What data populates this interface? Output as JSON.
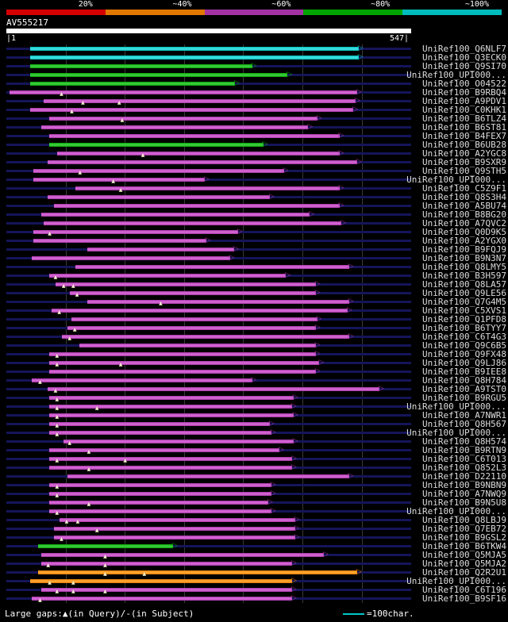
{
  "icons": {
    "arrow_right": "▷",
    "gap_query": "▲"
  },
  "footer": {
    "gaps_legend": "Large gaps:▲(in Query)/-(in Subject)",
    "scale_legend_text": "=100char.",
    "scale_legend_color": "#00c8c8"
  },
  "chart_data": {
    "type": "bar",
    "subtype": "blast-hit-alignment-overview",
    "title": "AV555217",
    "query_length": 547,
    "xlim": [
      1,
      547
    ],
    "xlabel": "query position",
    "grid_interval": 80,
    "ruler": {
      "start_label": "|1",
      "end_label": "547|"
    },
    "identity_scale": {
      "labels": [
        "20%",
        "~40%",
        "~60%",
        "~80%",
        "~100%"
      ],
      "colors": [
        "#d40000",
        "#e07800",
        "#a232a2",
        "#00a500",
        "#00bcbc"
      ]
    },
    "colors": {
      "red": {
        "base": "#d40000",
        "hi": "#ff4444"
      },
      "orange": {
        "base": "#e07800",
        "hi": "#ffa733"
      },
      "purple": {
        "base": "#a232a2",
        "hi": "#d668d6"
      },
      "green": {
        "base": "#00a500",
        "hi": "#3ecc3e"
      },
      "cyan": {
        "base": "#00bcbc",
        "hi": "#3edede"
      }
    },
    "rows": [
      {
        "label": "UniRef100_Q6NLF7",
        "start": 32,
        "end": 476,
        "bin": "cyan",
        "gaps": []
      },
      {
        "label": "UniRef100_Q3ECK0",
        "start": 32,
        "end": 476,
        "bin": "cyan",
        "gaps": []
      },
      {
        "label": "UniRef100_Q9SI70",
        "start": 32,
        "end": 332,
        "bin": "green",
        "gaps": []
      },
      {
        "label": "UniRef100_UPI000...",
        "start": 32,
        "end": 380,
        "bin": "green",
        "gaps": []
      },
      {
        "label": "UniRef100_O04522",
        "start": 32,
        "end": 309,
        "bin": "green",
        "gaps": []
      },
      {
        "label": "UniRef100_B9RBQ4",
        "start": 4,
        "end": 474,
        "bin": "purple",
        "gaps": [
          72
        ]
      },
      {
        "label": "UniRef100_A9PDV1",
        "start": 50,
        "end": 472,
        "bin": "purple",
        "gaps": [
          101,
          150
        ]
      },
      {
        "label": "UniRef100_C0KHK1",
        "start": 32,
        "end": 469,
        "bin": "purple",
        "gaps": [
          86
        ]
      },
      {
        "label": "UniRef100_B6TLZ4",
        "start": 58,
        "end": 420,
        "bin": "purple",
        "gaps": [
          154
        ]
      },
      {
        "label": "UniRef100_B6ST81",
        "start": 47,
        "end": 408,
        "bin": "purple",
        "gaps": []
      },
      {
        "label": "UniRef100_B4FEX7",
        "start": 58,
        "end": 450,
        "bin": "purple",
        "gaps": []
      },
      {
        "label": "UniRef100_B6UB28",
        "start": 58,
        "end": 347,
        "bin": "green",
        "gaps": []
      },
      {
        "label": "UniRef100_A2YGC8",
        "start": 69,
        "end": 450,
        "bin": "purple",
        "gaps": [
          182
        ]
      },
      {
        "label": "UniRef100_B9SXR9",
        "start": 56,
        "end": 474,
        "bin": "purple",
        "gaps": []
      },
      {
        "label": "UniRef100_Q9STH5",
        "start": 36,
        "end": 375,
        "bin": "purple",
        "gaps": [
          97
        ]
      },
      {
        "label": "UniRef100_UPI000...",
        "start": 36,
        "end": 268,
        "bin": "purple",
        "gaps": [
          142
        ]
      },
      {
        "label": "UniRef100_C5Z9F1",
        "start": 93,
        "end": 450,
        "bin": "purple",
        "gaps": [
          152
        ]
      },
      {
        "label": "UniRef100_Q8S3H4",
        "start": 56,
        "end": 356,
        "bin": "purple",
        "gaps": []
      },
      {
        "label": "UniRef100_A5BU74",
        "start": 64,
        "end": 450,
        "bin": "purple",
        "gaps": []
      },
      {
        "label": "UniRef100_B8BG20",
        "start": 47,
        "end": 410,
        "bin": "purple",
        "gaps": []
      },
      {
        "label": "UniRef100_A7QVC2",
        "start": 50,
        "end": 453,
        "bin": "purple",
        "gaps": []
      },
      {
        "label": "UniRef100_Q0D9K5",
        "start": 36,
        "end": 313,
        "bin": "purple",
        "gaps": [
          56
        ]
      },
      {
        "label": "UniRef100_A2YGX0",
        "start": 36,
        "end": 270,
        "bin": "purple",
        "gaps": []
      },
      {
        "label": "UniRef100_B9FQJ9",
        "start": 109,
        "end": 308,
        "bin": "purple",
        "gaps": []
      },
      {
        "label": "UniRef100_B9N3N7",
        "start": 34,
        "end": 302,
        "bin": "purple",
        "gaps": []
      },
      {
        "label": "UniRef100_Q8LMY5",
        "start": 93,
        "end": 463,
        "bin": "purple",
        "gaps": []
      },
      {
        "label": "UniRef100_B3H597",
        "start": 58,
        "end": 378,
        "bin": "purple",
        "gaps": [
          64
        ]
      },
      {
        "label": "UniRef100_Q8LA57",
        "start": 66,
        "end": 418,
        "bin": "purple",
        "gaps": [
          75,
          88
        ]
      },
      {
        "label": "UniRef100_Q9LE56",
        "start": 86,
        "end": 418,
        "bin": "purple",
        "gaps": [
          93
        ]
      },
      {
        "label": "UniRef100_Q7G4M5",
        "start": 109,
        "end": 463,
        "bin": "purple",
        "gaps": [
          206
        ]
      },
      {
        "label": "UniRef100_C5XVS1",
        "start": 61,
        "end": 461,
        "bin": "purple",
        "gaps": [
          69
        ]
      },
      {
        "label": "UniRef100_Q1PFD8",
        "start": 88,
        "end": 420,
        "bin": "purple",
        "gaps": []
      },
      {
        "label": "UniRef100_B6TYY7",
        "start": 83,
        "end": 418,
        "bin": "purple",
        "gaps": [
          90
        ]
      },
      {
        "label": "UniRef100_C6T4G3",
        "start": 75,
        "end": 463,
        "bin": "purple",
        "gaps": [
          83
        ]
      },
      {
        "label": "UniRef100_Q9C6B5",
        "start": 99,
        "end": 418,
        "bin": "purple",
        "gaps": []
      },
      {
        "label": "UniRef100_Q9FX48",
        "start": 58,
        "end": 418,
        "bin": "purple",
        "gaps": [
          66
        ]
      },
      {
        "label": "UniRef100_Q9LJ86",
        "start": 58,
        "end": 423,
        "bin": "purple",
        "gaps": [
          66,
          152
        ]
      },
      {
        "label": "UniRef100_B9IEE8",
        "start": 58,
        "end": 418,
        "bin": "purple",
        "gaps": []
      },
      {
        "label": "UniRef100_Q8H784",
        "start": 34,
        "end": 332,
        "bin": "purple",
        "gaps": [
          43
        ]
      },
      {
        "label": "UniRef100_A9TST0",
        "start": 56,
        "end": 504,
        "bin": "purple",
        "gaps": [
          64
        ]
      },
      {
        "label": "UniRef100_B9RGU5",
        "start": 58,
        "end": 388,
        "bin": "purple",
        "gaps": [
          66
        ]
      },
      {
        "label": "UniRef100_UPI000...",
        "start": 58,
        "end": 386,
        "bin": "purple",
        "gaps": [
          66,
          120
        ]
      },
      {
        "label": "UniRef100_A7NWR1",
        "start": 58,
        "end": 388,
        "bin": "purple",
        "gaps": [
          66
        ]
      },
      {
        "label": "UniRef100_Q8H567",
        "start": 58,
        "end": 356,
        "bin": "purple",
        "gaps": [
          66
        ]
      },
      {
        "label": "UniRef100_UPI000...",
        "start": 58,
        "end": 358,
        "bin": "purple",
        "gaps": [
          66
        ]
      },
      {
        "label": "UniRef100_Q8H574",
        "start": 77,
        "end": 388,
        "bin": "purple",
        "gaps": [
          83
        ]
      },
      {
        "label": "UniRef100_B9RTN9",
        "start": 58,
        "end": 369,
        "bin": "purple",
        "gaps": [
          109
        ]
      },
      {
        "label": "UniRef100_C6T013",
        "start": 58,
        "end": 386,
        "bin": "purple",
        "gaps": [
          66,
          158
        ]
      },
      {
        "label": "UniRef100_Q852L3",
        "start": 58,
        "end": 386,
        "bin": "purple",
        "gaps": [
          109
        ]
      },
      {
        "label": "UniRef100_D22110",
        "start": 83,
        "end": 463,
        "bin": "purple",
        "gaps": []
      },
      {
        "label": "UniRef100_B9NBN9",
        "start": 58,
        "end": 358,
        "bin": "purple",
        "gaps": [
          66
        ]
      },
      {
        "label": "UniRef100_A7NWQ9",
        "start": 58,
        "end": 358,
        "bin": "purple",
        "gaps": [
          66
        ]
      },
      {
        "label": "UniRef100_B9N5U8",
        "start": 58,
        "end": 354,
        "bin": "purple",
        "gaps": [
          109
        ]
      },
      {
        "label": "UniRef100_UPI000...",
        "start": 58,
        "end": 358,
        "bin": "purple",
        "gaps": [
          66
        ]
      },
      {
        "label": "UniRef100_Q8LBJ9",
        "start": 72,
        "end": 390,
        "bin": "purple",
        "gaps": [
          79,
          94
        ]
      },
      {
        "label": "UniRef100_Q7EB72",
        "start": 64,
        "end": 390,
        "bin": "purple",
        "gaps": [
          120
        ]
      },
      {
        "label": "UniRef100_B9GSL2",
        "start": 64,
        "end": 390,
        "bin": "purple",
        "gaps": [
          72
        ]
      },
      {
        "label": "UniRef100_B6TKW4",
        "start": 43,
        "end": 225,
        "bin": "green",
        "gaps": []
      },
      {
        "label": "UniRef100_Q5MJA5",
        "start": 47,
        "end": 429,
        "bin": "purple",
        "gaps": [
          131
        ]
      },
      {
        "label": "UniRef100_Q5MJA2",
        "start": 47,
        "end": 386,
        "bin": "purple",
        "gaps": [
          54,
          131
        ]
      },
      {
        "label": "UniRef100_Q2R2U1",
        "start": 43,
        "end": 474,
        "bin": "orange",
        "gaps": [
          131,
          184
        ]
      },
      {
        "label": "UniRef100_UPI000...",
        "start": 32,
        "end": 386,
        "bin": "orange",
        "gaps": [
          56,
          88
        ]
      },
      {
        "label": "UniRef100_C6T196",
        "start": 47,
        "end": 386,
        "bin": "purple",
        "gaps": [
          66,
          88,
          131
        ]
      },
      {
        "label": "UniRef100_B9SF16",
        "start": 34,
        "end": 386,
        "bin": "purple",
        "gaps": [
          43
        ]
      }
    ]
  }
}
